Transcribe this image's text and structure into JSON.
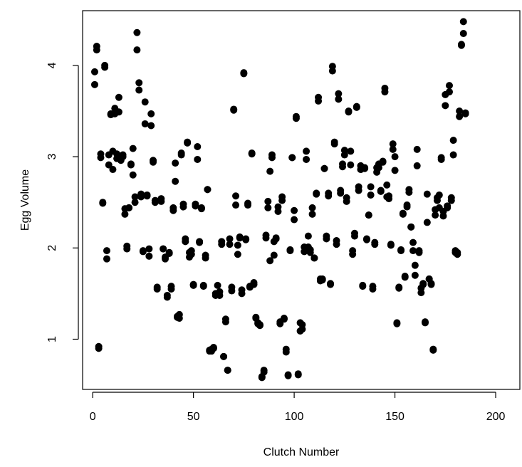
{
  "chart_data": {
    "type": "scatter",
    "xlabel": "Clutch Number",
    "ylabel": "Egg Volume",
    "xlim": [
      -5,
      212
    ],
    "ylim": [
      0.45,
      4.6
    ],
    "xticks": [
      0,
      50,
      100,
      150,
      200
    ],
    "yticks": [
      1,
      2,
      3,
      4
    ],
    "grid": false,
    "legend": "none",
    "point_color": "#000000",
    "points": [
      [
        1,
        3.79
      ],
      [
        1,
        3.93
      ],
      [
        2,
        4.17
      ],
      [
        2,
        4.21
      ],
      [
        3,
        0.92
      ],
      [
        3,
        0.9
      ],
      [
        4,
        3.03
      ],
      [
        4,
        2.99
      ],
      [
        5,
        2.49
      ],
      [
        5,
        2.5
      ],
      [
        6,
        3.98
      ],
      [
        6,
        4.0
      ],
      [
        7,
        1.97
      ],
      [
        7,
        1.88
      ],
      [
        8,
        3.02
      ],
      [
        8,
        2.91
      ],
      [
        9,
        3.46
      ],
      [
        9,
        3.47
      ],
      [
        10,
        3.06
      ],
      [
        10,
        2.86
      ],
      [
        11,
        3.53
      ],
      [
        11,
        3.47
      ],
      [
        12,
        3.03
      ],
      [
        12,
        2.98
      ],
      [
        13,
        3.65
      ],
      [
        13,
        3.49
      ],
      [
        14,
        2.96
      ],
      [
        14,
        2.99
      ],
      [
        15,
        3.0
      ],
      [
        15,
        3.02
      ],
      [
        16,
        2.37
      ],
      [
        16,
        2.43
      ],
      [
        17,
        2.02
      ],
      [
        17,
        1.99
      ],
      [
        18,
        2.44
      ],
      [
        18,
        2.44
      ],
      [
        19,
        2.92
      ],
      [
        19,
        2.91
      ],
      [
        20,
        3.09
      ],
      [
        20,
        2.8
      ],
      [
        21,
        2.56
      ],
      [
        21,
        2.5
      ],
      [
        22,
        4.36
      ],
      [
        22,
        4.17
      ],
      [
        23,
        3.81
      ],
      [
        23,
        3.73
      ],
      [
        24,
        2.59
      ],
      [
        24,
        2.56
      ],
      [
        25,
        1.96
      ],
      [
        25,
        1.97
      ],
      [
        26,
        3.6
      ],
      [
        26,
        3.36
      ],
      [
        27,
        2.57
      ],
      [
        27,
        2.58
      ],
      [
        28,
        1.99
      ],
      [
        28,
        1.91
      ],
      [
        29,
        3.47
      ],
      [
        29,
        3.34
      ],
      [
        30,
        2.94
      ],
      [
        30,
        2.96
      ],
      [
        31,
        2.52
      ],
      [
        31,
        2.5
      ],
      [
        32,
        1.57
      ],
      [
        32,
        1.55
      ],
      [
        34,
        2.54
      ],
      [
        34,
        2.51
      ],
      [
        35,
        1.99
      ],
      [
        35,
        1.99
      ],
      [
        36,
        1.9
      ],
      [
        36,
        1.88
      ],
      [
        37,
        1.48
      ],
      [
        37,
        1.46
      ],
      [
        38,
        1.95
      ],
      [
        38,
        1.94
      ],
      [
        39,
        1.55
      ],
      [
        39,
        1.58
      ],
      [
        40,
        2.44
      ],
      [
        40,
        2.41
      ],
      [
        41,
        2.73
      ],
      [
        41,
        2.93
      ],
      [
        42,
        1.24
      ],
      [
        42,
        1.25
      ],
      [
        43,
        1.27
      ],
      [
        43,
        1.23
      ],
      [
        44,
        3.02
      ],
      [
        44,
        3.04
      ],
      [
        45,
        2.48
      ],
      [
        45,
        2.45
      ],
      [
        46,
        2.07
      ],
      [
        46,
        2.1
      ],
      [
        47,
        3.16
      ],
      [
        47,
        3.15
      ],
      [
        48,
        1.95
      ],
      [
        48,
        1.9
      ],
      [
        49,
        1.97
      ],
      [
        49,
        1.93
      ],
      [
        50,
        1.59
      ],
      [
        50,
        1.6
      ],
      [
        51,
        2.48
      ],
      [
        51,
        2.46
      ],
      [
        52,
        3.11
      ],
      [
        52,
        2.97
      ],
      [
        53,
        2.06
      ],
      [
        53,
        2.07
      ],
      [
        54,
        2.43
      ],
      [
        54,
        2.44
      ],
      [
        55,
        1.59
      ],
      [
        55,
        1.58
      ],
      [
        56,
        1.92
      ],
      [
        56,
        1.89
      ],
      [
        57,
        2.64
      ],
      [
        57,
        2.64
      ],
      [
        58,
        0.87
      ],
      [
        58,
        0.88
      ],
      [
        59,
        0.89
      ],
      [
        59,
        0.87
      ],
      [
        60,
        0.91
      ],
      [
        60,
        0.9
      ],
      [
        61,
        1.5
      ],
      [
        61,
        1.48
      ],
      [
        62,
        1.59
      ],
      [
        62,
        1.5
      ],
      [
        63,
        1.52
      ],
      [
        63,
        1.48
      ],
      [
        64,
        2.04
      ],
      [
        64,
        2.07
      ],
      [
        65,
        0.81
      ],
      [
        65,
        0.81
      ],
      [
        66,
        1.22
      ],
      [
        66,
        1.19
      ],
      [
        67,
        0.66
      ],
      [
        67,
        0.66
      ],
      [
        68,
        2.04
      ],
      [
        68,
        2.1
      ],
      [
        69,
        1.57
      ],
      [
        69,
        1.53
      ],
      [
        70,
        3.51
      ],
      [
        70,
        3.52
      ],
      [
        71,
        2.57
      ],
      [
        71,
        2.47
      ],
      [
        72,
        1.93
      ],
      [
        72,
        2.03
      ],
      [
        73,
        2.12
      ],
      [
        73,
        2.11
      ],
      [
        74,
        1.54
      ],
      [
        74,
        1.5
      ],
      [
        75,
        3.91
      ],
      [
        75,
        3.92
      ],
      [
        76,
        2.1
      ],
      [
        76,
        2.09
      ],
      [
        77,
        2.49
      ],
      [
        77,
        2.47
      ],
      [
        78,
        1.58
      ],
      [
        78,
        1.57
      ],
      [
        79,
        3.03
      ],
      [
        79,
        3.04
      ],
      [
        80,
        1.62
      ],
      [
        80,
        1.6
      ],
      [
        81,
        1.24
      ],
      [
        81,
        1.23
      ],
      [
        82,
        1.18
      ],
      [
        82,
        1.17
      ],
      [
        83,
        1.16
      ],
      [
        83,
        1.15
      ],
      [
        84,
        0.58
      ],
      [
        84,
        0.59
      ],
      [
        85,
        0.66
      ],
      [
        85,
        0.64
      ],
      [
        86,
        2.11
      ],
      [
        86,
        2.14
      ],
      [
        87,
        2.51
      ],
      [
        87,
        2.44
      ],
      [
        88,
        2.84
      ],
      [
        88,
        1.86
      ],
      [
        89,
        3.02
      ],
      [
        89,
        2.99
      ],
      [
        90,
        1.92
      ],
      [
        90,
        2.07
      ],
      [
        91,
        2.11
      ],
      [
        91,
        2.1
      ],
      [
        92,
        2.45
      ],
      [
        92,
        2.4
      ],
      [
        93,
        1.19
      ],
      [
        93,
        1.17
      ],
      [
        94,
        2.56
      ],
      [
        94,
        2.52
      ],
      [
        95,
        1.22
      ],
      [
        95,
        1.23
      ],
      [
        96,
        0.89
      ],
      [
        96,
        0.86
      ],
      [
        97,
        0.61
      ],
      [
        97,
        0.6
      ],
      [
        98,
        1.98
      ],
      [
        98,
        1.97
      ],
      [
        99,
        2.99
      ],
      [
        99,
        2.99
      ],
      [
        100,
        2.31
      ],
      [
        100,
        2.41
      ],
      [
        101,
        3.44
      ],
      [
        101,
        3.42
      ],
      [
        102,
        0.62
      ],
      [
        102,
        0.61
      ],
      [
        103,
        1.18
      ],
      [
        103,
        1.09
      ],
      [
        104,
        1.11
      ],
      [
        104,
        1.16
      ],
      [
        105,
        1.96
      ],
      [
        105,
        2.01
      ],
      [
        106,
        3.06
      ],
      [
        106,
        2.97
      ],
      [
        107,
        2.13
      ],
      [
        107,
        2.01
      ],
      [
        108,
        1.95
      ],
      [
        108,
        1.98
      ],
      [
        109,
        2.37
      ],
      [
        109,
        2.44
      ],
      [
        110,
        1.89
      ],
      [
        110,
        1.89
      ],
      [
        111,
        2.6
      ],
      [
        111,
        2.59
      ],
      [
        112,
        3.61
      ],
      [
        112,
        3.65
      ],
      [
        113,
        1.64
      ],
      [
        113,
        1.66
      ],
      [
        114,
        1.65
      ],
      [
        114,
        1.66
      ],
      [
        115,
        2.87
      ],
      [
        115,
        2.87
      ],
      [
        116,
        2.13
      ],
      [
        116,
        2.1
      ],
      [
        117,
        2.6
      ],
      [
        117,
        2.57
      ],
      [
        118,
        1.61
      ],
      [
        118,
        1.6
      ],
      [
        119,
        3.94
      ],
      [
        119,
        3.99
      ],
      [
        120,
        3.16
      ],
      [
        120,
        3.14
      ],
      [
        121,
        2.08
      ],
      [
        121,
        2.04
      ],
      [
        122,
        3.69
      ],
      [
        122,
        3.63
      ],
      [
        123,
        2.63
      ],
      [
        123,
        2.6
      ],
      [
        124,
        2.92
      ],
      [
        124,
        2.89
      ],
      [
        125,
        3.07
      ],
      [
        125,
        3.02
      ],
      [
        126,
        2.55
      ],
      [
        126,
        2.51
      ],
      [
        127,
        3.5
      ],
      [
        127,
        3.49
      ],
      [
        128,
        3.06
      ],
      [
        128,
        2.91
      ],
      [
        129,
        1.93
      ],
      [
        129,
        1.97
      ],
      [
        130,
        2.16
      ],
      [
        130,
        2.13
      ],
      [
        131,
        3.54
      ],
      [
        131,
        3.55
      ],
      [
        132,
        2.67
      ],
      [
        132,
        2.63
      ],
      [
        133,
        2.86
      ],
      [
        133,
        2.9
      ],
      [
        134,
        1.58
      ],
      [
        134,
        1.59
      ],
      [
        135,
        2.88
      ],
      [
        135,
        2.87
      ],
      [
        136,
        2.09
      ],
      [
        136,
        2.1
      ],
      [
        137,
        2.36
      ],
      [
        137,
        2.36
      ],
      [
        138,
        2.67
      ],
      [
        138,
        2.58
      ],
      [
        139,
        1.58
      ],
      [
        139,
        1.55
      ],
      [
        140,
        2.04
      ],
      [
        140,
        2.06
      ],
      [
        141,
        2.88
      ],
      [
        141,
        2.83
      ],
      [
        142,
        2.88
      ],
      [
        142,
        2.92
      ],
      [
        143,
        2.63
      ],
      [
        143,
        2.62
      ],
      [
        144,
        2.95
      ],
      [
        144,
        2.94
      ],
      [
        145,
        3.71
      ],
      [
        145,
        3.75
      ],
      [
        146,
        2.56
      ],
      [
        146,
        2.69
      ],
      [
        147,
        2.54
      ],
      [
        147,
        2.57
      ],
      [
        148,
        2.04
      ],
      [
        148,
        2.03
      ],
      [
        149,
        3.14
      ],
      [
        149,
        3.08
      ],
      [
        150,
        3.0
      ],
      [
        150,
        2.85
      ],
      [
        151,
        1.18
      ],
      [
        151,
        1.17
      ],
      [
        152,
        1.57
      ],
      [
        152,
        1.56
      ],
      [
        153,
        1.97
      ],
      [
        153,
        1.98
      ],
      [
        154,
        2.38
      ],
      [
        154,
        2.37
      ],
      [
        155,
        1.68
      ],
      [
        155,
        1.69
      ],
      [
        156,
        2.47
      ],
      [
        156,
        2.45
      ],
      [
        157,
        2.64
      ],
      [
        157,
        2.61
      ],
      [
        158,
        2.23
      ],
      [
        158,
        2.23
      ],
      [
        159,
        2.06
      ],
      [
        159,
        1.97
      ],
      [
        160,
        1.7
      ],
      [
        160,
        1.81
      ],
      [
        161,
        3.08
      ],
      [
        161,
        2.9
      ],
      [
        162,
        1.95
      ],
      [
        162,
        1.97
      ],
      [
        163,
        1.51
      ],
      [
        163,
        1.56
      ],
      [
        164,
        1.6
      ],
      [
        164,
        1.61
      ],
      [
        165,
        1.18
      ],
      [
        165,
        1.19
      ],
      [
        166,
        2.28
      ],
      [
        166,
        2.59
      ],
      [
        167,
        1.66
      ],
      [
        167,
        1.66
      ],
      [
        168,
        1.6
      ],
      [
        168,
        1.61
      ],
      [
        169,
        0.89
      ],
      [
        169,
        0.88
      ],
      [
        170,
        2.42
      ],
      [
        170,
        2.36
      ],
      [
        171,
        2.55
      ],
      [
        171,
        2.52
      ],
      [
        172,
        2.58
      ],
      [
        172,
        2.44
      ],
      [
        173,
        2.99
      ],
      [
        173,
        2.97
      ],
      [
        174,
        2.35
      ],
      [
        174,
        2.4
      ],
      [
        175,
        3.56
      ],
      [
        175,
        3.68
      ],
      [
        176,
        2.44
      ],
      [
        176,
        2.46
      ],
      [
        177,
        3.78
      ],
      [
        177,
        3.71
      ],
      [
        178,
        2.52
      ],
      [
        178,
        2.55
      ],
      [
        179,
        3.02
      ],
      [
        179,
        3.18
      ],
      [
        180,
        1.95
      ],
      [
        180,
        1.97
      ],
      [
        181,
        1.93
      ],
      [
        181,
        1.95
      ],
      [
        182,
        3.44
      ],
      [
        182,
        3.5
      ],
      [
        183,
        4.22
      ],
      [
        183,
        4.23
      ],
      [
        184,
        4.35
      ],
      [
        184,
        4.48
      ],
      [
        185,
        3.48
      ],
      [
        185,
        3.47
      ]
    ]
  }
}
